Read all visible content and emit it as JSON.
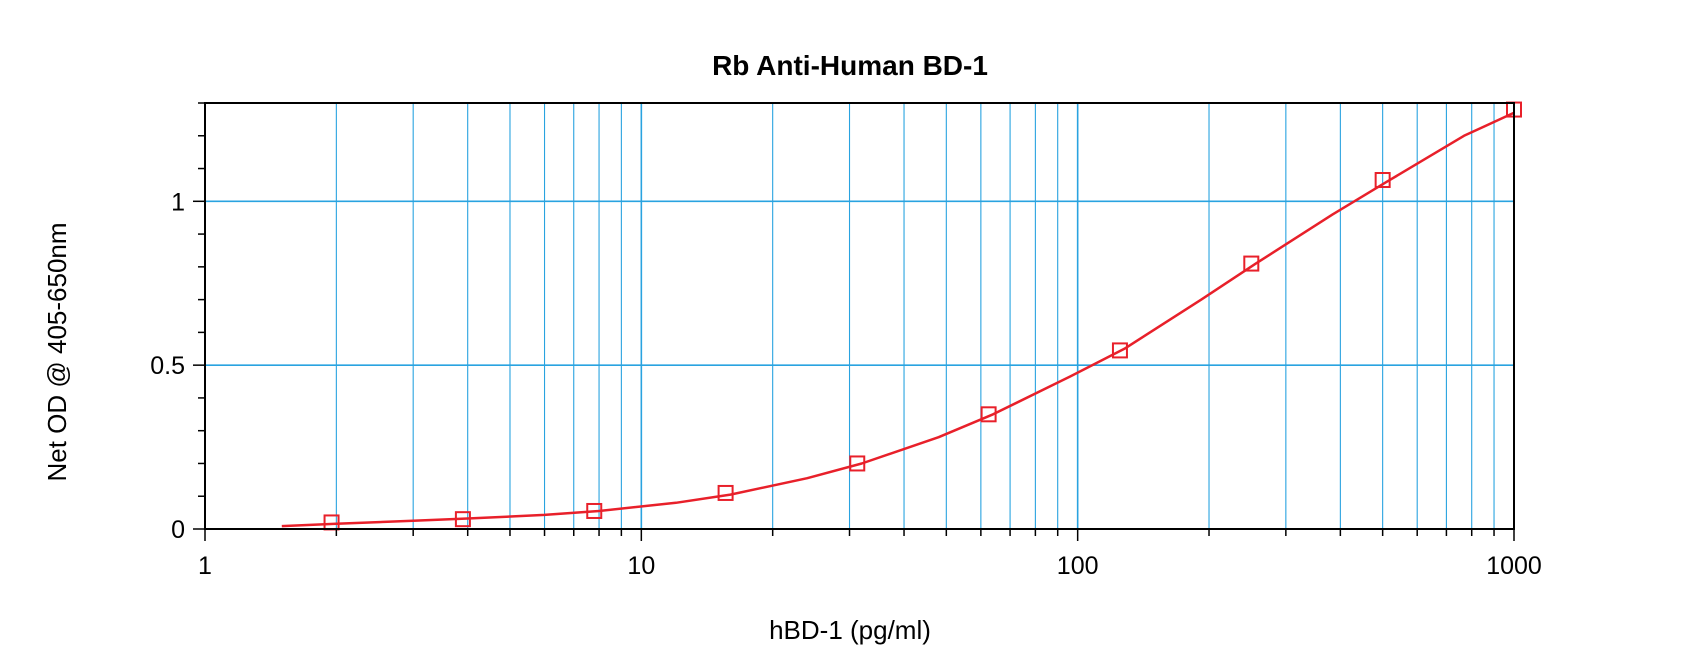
{
  "chart_data": {
    "type": "scatter",
    "title": "Rb Anti-Human BD-1",
    "xlabel": "hBD-1 (pg/ml)",
    "ylabel": "Net OD @ 405-650nm",
    "x_scale": "log",
    "xlim": [
      1,
      1000
    ],
    "ylim": [
      0,
      1.3
    ],
    "x_ticks": [
      1,
      10,
      100,
      1000
    ],
    "x_tick_labels": [
      "1",
      "10",
      "100",
      "1000"
    ],
    "y_ticks": [
      0,
      0.5,
      1
    ],
    "y_tick_labels": [
      "0",
      "0.5",
      "1"
    ],
    "grid": true,
    "series": [
      {
        "marker": "open-square",
        "color": "#e8202a",
        "x": [
          1.95,
          3.9,
          7.8,
          15.6,
          31.25,
          62.5,
          125,
          250,
          500,
          1000
        ],
        "y": [
          0.02,
          0.03,
          0.055,
          0.11,
          0.2,
          0.35,
          0.545,
          0.81,
          1.065,
          1.28
        ]
      }
    ],
    "fit_curve": {
      "color": "#e8202a",
      "x": [
        1.5,
        2,
        3,
        4,
        6,
        8,
        12,
        16,
        24,
        32,
        48,
        64,
        96,
        128,
        192,
        256,
        384,
        512,
        768,
        1000
      ],
      "y": [
        0.009,
        0.016,
        0.025,
        0.032,
        0.043,
        0.055,
        0.08,
        0.105,
        0.155,
        0.2,
        0.28,
        0.35,
        0.465,
        0.55,
        0.7,
        0.81,
        0.96,
        1.06,
        1.2,
        1.27
      ]
    },
    "colors": {
      "grid": "#29a3e0",
      "series": "#e8202a",
      "axes": "#000000"
    }
  }
}
